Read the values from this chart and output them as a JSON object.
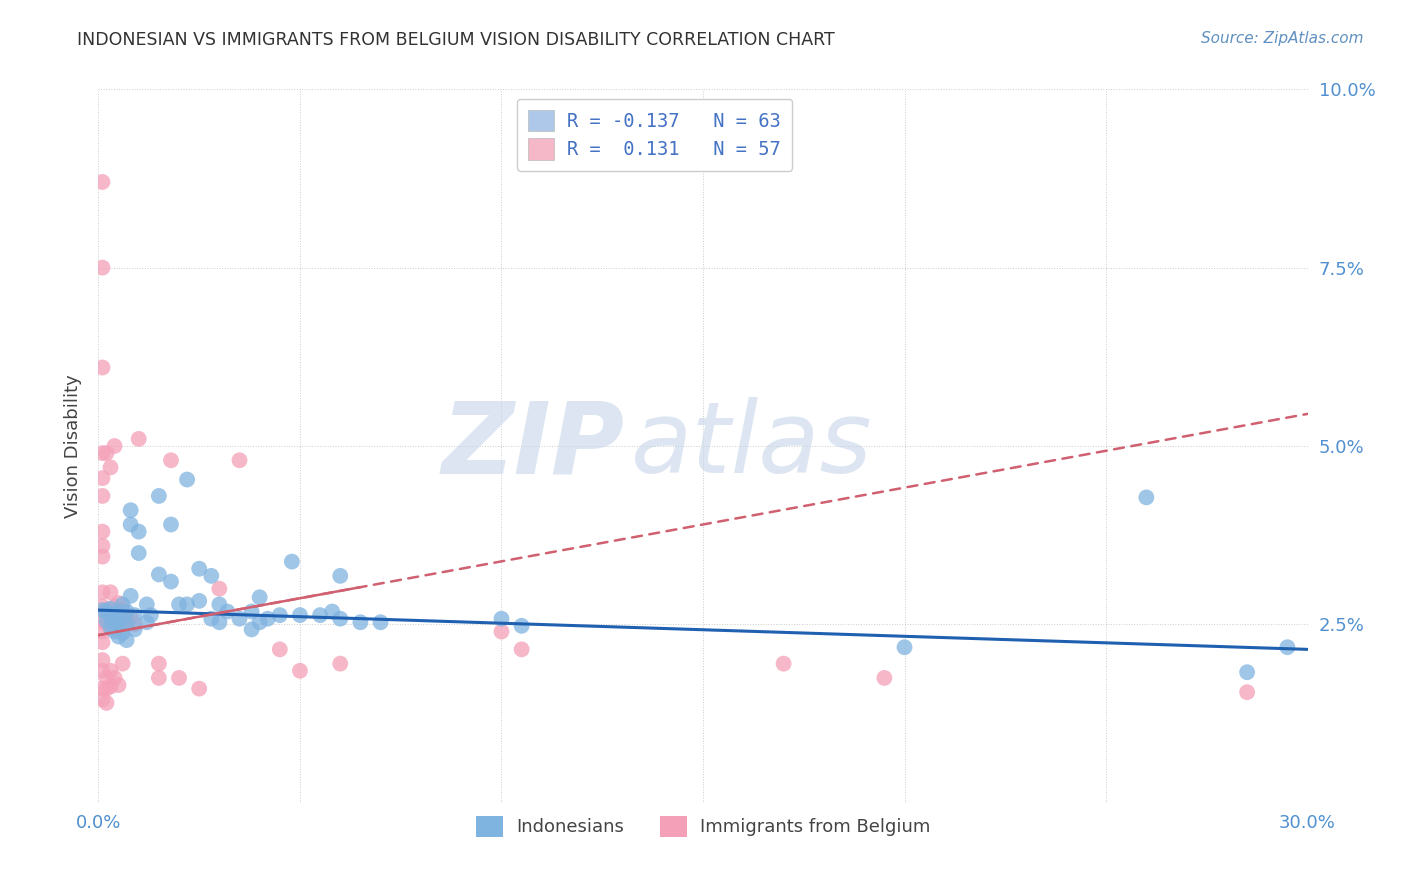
{
  "title": "INDONESIAN VS IMMIGRANTS FROM BELGIUM VISION DISABILITY CORRELATION CHART",
  "source": "Source: ZipAtlas.com",
  "ylabel": "Vision Disability",
  "xlim": [
    0.0,
    0.3
  ],
  "ylim": [
    0.0,
    0.1
  ],
  "xticks": [
    0.0,
    0.05,
    0.1,
    0.15,
    0.2,
    0.25,
    0.3
  ],
  "yticks": [
    0.0,
    0.025,
    0.05,
    0.075,
    0.1
  ],
  "xtick_labels": [
    "0.0%",
    "",
    "",
    "",
    "",
    "",
    "30.0%"
  ],
  "ytick_labels": [
    "",
    "2.5%",
    "5.0%",
    "7.5%",
    "10.0%"
  ],
  "legend_r_entries": [
    {
      "label_r": "R = -0.137",
      "label_n": "N = 63",
      "color": "#adc8e8"
    },
    {
      "label_r": "R =  0.131",
      "label_n": "N = 57",
      "color": "#f4b8c8"
    }
  ],
  "indonesian_color": "#7fb3e0",
  "belgium_color": "#f4a0b8",
  "indonesian_line_color": "#2060b0",
  "belgium_line_color": "#d06070",
  "indonesian_line": {
    "x0": 0.0,
    "y0": 0.027,
    "x1": 0.3,
    "y1": 0.0215
  },
  "belgium_line": {
    "x0": 0.0,
    "y0": 0.0235,
    "x1": 0.3,
    "y1": 0.0545
  },
  "indonesian_scatter": [
    [
      0.001,
      0.027
    ],
    [
      0.002,
      0.0268
    ],
    [
      0.002,
      0.0255
    ],
    [
      0.003,
      0.026
    ],
    [
      0.003,
      0.0272
    ],
    [
      0.003,
      0.0245
    ],
    [
      0.004,
      0.0263
    ],
    [
      0.004,
      0.0255
    ],
    [
      0.004,
      0.024
    ],
    [
      0.005,
      0.0268
    ],
    [
      0.005,
      0.025
    ],
    [
      0.005,
      0.0233
    ],
    [
      0.006,
      0.0278
    ],
    [
      0.006,
      0.0258
    ],
    [
      0.006,
      0.0238
    ],
    [
      0.007,
      0.0268
    ],
    [
      0.007,
      0.025
    ],
    [
      0.007,
      0.0228
    ],
    [
      0.008,
      0.041
    ],
    [
      0.008,
      0.039
    ],
    [
      0.008,
      0.029
    ],
    [
      0.009,
      0.0263
    ],
    [
      0.009,
      0.0243
    ],
    [
      0.01,
      0.038
    ],
    [
      0.01,
      0.035
    ],
    [
      0.012,
      0.0278
    ],
    [
      0.012,
      0.0253
    ],
    [
      0.013,
      0.0263
    ],
    [
      0.015,
      0.043
    ],
    [
      0.015,
      0.032
    ],
    [
      0.018,
      0.039
    ],
    [
      0.018,
      0.031
    ],
    [
      0.02,
      0.0278
    ],
    [
      0.022,
      0.0453
    ],
    [
      0.022,
      0.0278
    ],
    [
      0.025,
      0.0328
    ],
    [
      0.025,
      0.0283
    ],
    [
      0.028,
      0.0318
    ],
    [
      0.028,
      0.0258
    ],
    [
      0.03,
      0.0278
    ],
    [
      0.03,
      0.0253
    ],
    [
      0.032,
      0.0268
    ],
    [
      0.035,
      0.0258
    ],
    [
      0.038,
      0.0268
    ],
    [
      0.038,
      0.0243
    ],
    [
      0.04,
      0.0288
    ],
    [
      0.04,
      0.0253
    ],
    [
      0.042,
      0.0258
    ],
    [
      0.045,
      0.0263
    ],
    [
      0.048,
      0.0338
    ],
    [
      0.05,
      0.0263
    ],
    [
      0.055,
      0.0263
    ],
    [
      0.058,
      0.0268
    ],
    [
      0.06,
      0.0318
    ],
    [
      0.06,
      0.0258
    ],
    [
      0.065,
      0.0253
    ],
    [
      0.07,
      0.0253
    ],
    [
      0.1,
      0.0258
    ],
    [
      0.105,
      0.0248
    ],
    [
      0.2,
      0.0218
    ],
    [
      0.26,
      0.0428
    ],
    [
      0.285,
      0.0183
    ],
    [
      0.295,
      0.0218
    ]
  ],
  "belgium_scatter": [
    [
      0.001,
      0.087
    ],
    [
      0.001,
      0.075
    ],
    [
      0.001,
      0.061
    ],
    [
      0.001,
      0.049
    ],
    [
      0.001,
      0.0455
    ],
    [
      0.001,
      0.043
    ],
    [
      0.001,
      0.038
    ],
    [
      0.001,
      0.036
    ],
    [
      0.001,
      0.0345
    ],
    [
      0.001,
      0.0295
    ],
    [
      0.001,
      0.0275
    ],
    [
      0.001,
      0.0255
    ],
    [
      0.001,
      0.024
    ],
    [
      0.001,
      0.0225
    ],
    [
      0.001,
      0.02
    ],
    [
      0.001,
      0.0185
    ],
    [
      0.001,
      0.016
    ],
    [
      0.001,
      0.0145
    ],
    [
      0.002,
      0.049
    ],
    [
      0.002,
      0.027
    ],
    [
      0.002,
      0.025
    ],
    [
      0.002,
      0.0175
    ],
    [
      0.002,
      0.016
    ],
    [
      0.002,
      0.014
    ],
    [
      0.003,
      0.047
    ],
    [
      0.003,
      0.0295
    ],
    [
      0.003,
      0.026
    ],
    [
      0.003,
      0.0185
    ],
    [
      0.003,
      0.0163
    ],
    [
      0.004,
      0.05
    ],
    [
      0.004,
      0.0275
    ],
    [
      0.004,
      0.0245
    ],
    [
      0.004,
      0.0175
    ],
    [
      0.005,
      0.028
    ],
    [
      0.005,
      0.026
    ],
    [
      0.005,
      0.0165
    ],
    [
      0.006,
      0.027
    ],
    [
      0.006,
      0.0195
    ],
    [
      0.007,
      0.0255
    ],
    [
      0.008,
      0.026
    ],
    [
      0.009,
      0.025
    ],
    [
      0.01,
      0.051
    ],
    [
      0.015,
      0.0195
    ],
    [
      0.015,
      0.0175
    ],
    [
      0.018,
      0.048
    ],
    [
      0.02,
      0.0175
    ],
    [
      0.025,
      0.016
    ],
    [
      0.03,
      0.03
    ],
    [
      0.035,
      0.048
    ],
    [
      0.045,
      0.0215
    ],
    [
      0.05,
      0.0185
    ],
    [
      0.06,
      0.0195
    ],
    [
      0.1,
      0.024
    ],
    [
      0.105,
      0.0215
    ],
    [
      0.17,
      0.0195
    ],
    [
      0.195,
      0.0175
    ],
    [
      0.285,
      0.0155
    ]
  ],
  "watermark_zip": "ZIP",
  "watermark_atlas": "atlas",
  "background_color": "#ffffff",
  "grid_color": "#cccccc"
}
